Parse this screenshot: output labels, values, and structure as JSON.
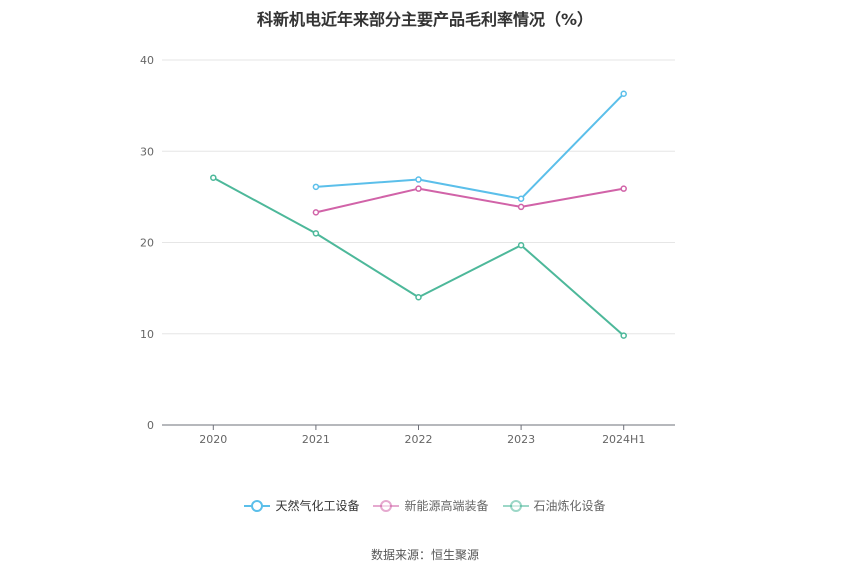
{
  "chart_data": {
    "type": "line",
    "title": "科新机电近年来部分主要产品毛利率情况（%）",
    "categories": [
      "2020",
      "2021",
      "2022",
      "2023",
      "2024H1"
    ],
    "ylim": [
      0,
      40
    ],
    "yticks": [
      "0",
      "10",
      "20",
      "30",
      "40"
    ],
    "grid": true,
    "legend_position": "bottom",
    "series": [
      {
        "name": "天然气化工设备",
        "color": "#5bbfea",
        "values": [
          null,
          26.1,
          26.9,
          24.8,
          36.3
        ]
      },
      {
        "name": "新能源高端装备",
        "color": "#d163a8",
        "values": [
          null,
          23.3,
          25.9,
          23.9,
          25.9
        ]
      },
      {
        "name": "石油炼化设备",
        "color": "#4db89a",
        "values": [
          27.1,
          21.0,
          14.0,
          19.7,
          9.8
        ]
      }
    ]
  },
  "source": "数据来源：恒生聚源"
}
